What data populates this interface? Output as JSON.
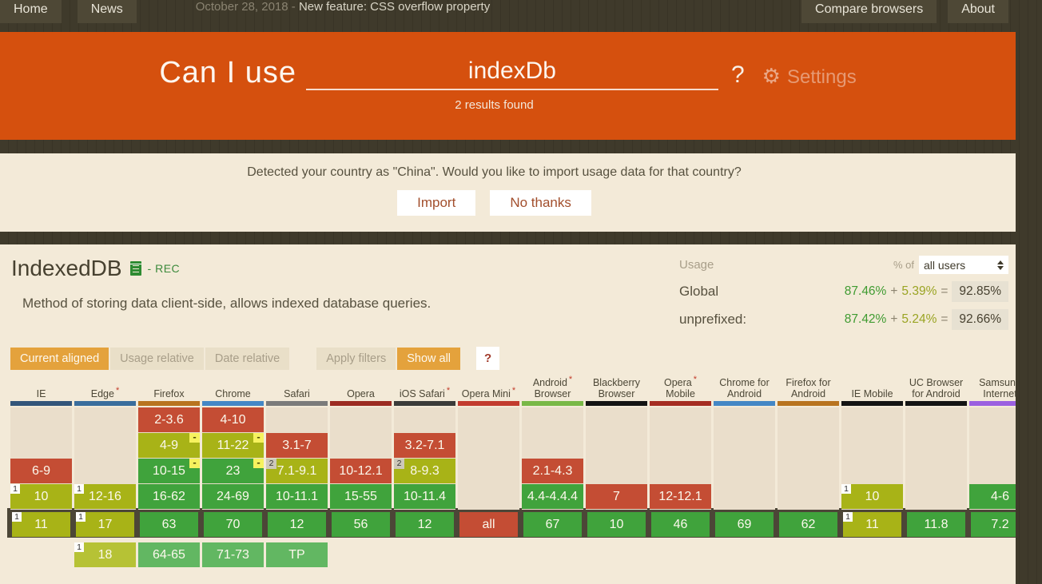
{
  "topnav": {
    "tabs_left": [
      {
        "key": "home",
        "label": "Home"
      },
      {
        "key": "news",
        "label": "News"
      }
    ],
    "news_date": "October 28, 2018 - ",
    "news_text": "New feature: CSS overflow property",
    "tabs_right": [
      {
        "key": "compare-browsers",
        "label": "Compare browsers"
      },
      {
        "key": "about",
        "label": "About"
      }
    ]
  },
  "header": {
    "title": "Can I use",
    "search_value": "indexDb",
    "question_mark": "?",
    "gear_icon": "⚙",
    "settings_label": "Settings",
    "results_text": "2 results found"
  },
  "banner": {
    "message": "Detected your country as \"China\". Would you like to import usage data for that country?",
    "import_label": "Import",
    "no_thanks_label": "No thanks"
  },
  "feature": {
    "title": "IndexedDB",
    "status": "- REC",
    "description": "Method of storing data client-side, allows indexed database queries."
  },
  "usage": {
    "label": "Usage",
    "percent_of_label": "% of",
    "select_value": "all users",
    "rows": [
      {
        "label": "Global",
        "supported": "87.46%",
        "plus": "+",
        "partial": "5.39%",
        "equals": "=",
        "total": "92.85%"
      },
      {
        "label": "unprefixed:",
        "supported": "87.42%",
        "plus": "+",
        "partial": "5.24%",
        "equals": "=",
        "total": "92.66%"
      }
    ]
  },
  "filters": {
    "group1": [
      {
        "key": "current-aligned",
        "label": "Current aligned",
        "active": true
      },
      {
        "key": "usage-relative",
        "label": "Usage relative",
        "active": false
      },
      {
        "key": "date-relative",
        "label": "Date relative",
        "active": false
      }
    ],
    "group2": [
      {
        "key": "apply-filters",
        "label": "Apply filters",
        "active": false
      },
      {
        "key": "show-all",
        "label": "Show all",
        "active": true
      }
    ],
    "help_label": "?"
  },
  "colors": {
    "accent_orange": "#d5500e",
    "button_orange": "#e4a23c",
    "band": "#4c4637",
    "cell_types": {
      "red": "#c44d34",
      "olive": "#a8b317",
      "green": "#40a33c",
      "olive_future": "#b6c235",
      "green_future": "#62b762"
    }
  },
  "table": {
    "columns": [
      {
        "key": "ie",
        "line1": "IE",
        "ast": false,
        "brand": "#33557a",
        "cells": [
          {
            "era": 3,
            "label": "6-9",
            "type": "red"
          },
          {
            "era": 4,
            "label": "10",
            "type": "olive",
            "badge": "1"
          },
          {
            "era": 5,
            "label": "11",
            "type": "olive",
            "badge": "1"
          }
        ]
      },
      {
        "key": "edge",
        "line1": "Edge",
        "ast": true,
        "brand": "#3a6d9c",
        "cells": [
          {
            "era": 4,
            "label": "12-16",
            "type": "olive",
            "badge": "1"
          },
          {
            "era": 5,
            "label": "17",
            "type": "olive",
            "badge": "1"
          },
          {
            "era": 6,
            "label": "18",
            "type": "olive_future",
            "badge": "1"
          }
        ]
      },
      {
        "key": "firefox",
        "line1": "Firefox",
        "ast": false,
        "brand": "#b8731f",
        "cells": [
          {
            "era": 1,
            "label": "2-3.6",
            "type": "red"
          },
          {
            "era": 2,
            "label": "4-9",
            "type": "olive",
            "badge": "minus"
          },
          {
            "era": 3,
            "label": "10-15",
            "type": "green",
            "badge": "minus"
          },
          {
            "era": 4,
            "label": "16-62",
            "type": "green"
          },
          {
            "era": 5,
            "label": "63",
            "type": "green"
          },
          {
            "era": 6,
            "label": "64-65",
            "type": "green_future"
          }
        ]
      },
      {
        "key": "chrome",
        "line1": "Chrome",
        "ast": false,
        "brand": "#4487c5",
        "cells": [
          {
            "era": 1,
            "label": "4-10",
            "type": "red"
          },
          {
            "era": 2,
            "label": "11-22",
            "type": "olive",
            "badge": "minus"
          },
          {
            "era": 3,
            "label": "23",
            "type": "green",
            "badge": "minus"
          },
          {
            "era": 4,
            "label": "24-69",
            "type": "green"
          },
          {
            "era": 5,
            "label": "70",
            "type": "green"
          },
          {
            "era": 6,
            "label": "71-73",
            "type": "green_future"
          }
        ]
      },
      {
        "key": "safari",
        "line1": "Safari",
        "ast": false,
        "brand": "#7b7b7b",
        "cells": [
          {
            "era": 2,
            "label": "3.1-7",
            "type": "red"
          },
          {
            "era": 3,
            "label": "7.1-9.1",
            "type": "olive",
            "badge": "2"
          },
          {
            "era": 4,
            "label": "10-11.1",
            "type": "green"
          },
          {
            "era": 5,
            "label": "12",
            "type": "green"
          },
          {
            "era": 6,
            "label": "TP",
            "type": "green_future"
          }
        ]
      },
      {
        "key": "opera",
        "line1": "Opera",
        "ast": false,
        "brand": "#9c2b22",
        "cells": [
          {
            "era": 3,
            "label": "10-12.1",
            "type": "red"
          },
          {
            "era": 4,
            "label": "15-55",
            "type": "green"
          },
          {
            "era": 5,
            "label": "56",
            "type": "green"
          }
        ]
      },
      {
        "key": "ios-safari",
        "line1": "iOS Safari",
        "ast": true,
        "brand": "#3b3b39",
        "cells": [
          {
            "era": 2,
            "label": "3.2-7.1",
            "type": "red"
          },
          {
            "era": 3,
            "label": "8-9.3",
            "type": "olive",
            "badge": "2"
          },
          {
            "era": 4,
            "label": "10-11.4",
            "type": "green"
          },
          {
            "era": 5,
            "label": "12",
            "type": "green"
          }
        ]
      },
      {
        "key": "opera-mini",
        "line1": "Opera Mini",
        "ast": true,
        "brand": "#c23b2e",
        "cells": [
          {
            "era": 5,
            "label": "all",
            "type": "red"
          }
        ]
      },
      {
        "key": "android-browser",
        "line1": "Android",
        "line2": "Browser",
        "ast": true,
        "brand": "#79b847",
        "cells": [
          {
            "era": 3,
            "label": "2.1-4.3",
            "type": "red"
          },
          {
            "era": 4,
            "label": "4.4-4.4.4",
            "type": "green"
          },
          {
            "era": 5,
            "label": "67",
            "type": "green"
          }
        ]
      },
      {
        "key": "blackberry-browser",
        "line1": "Blackberry",
        "line2": "Browser",
        "ast": false,
        "brand": "#141414",
        "cells": [
          {
            "era": 4,
            "label": "7",
            "type": "red"
          },
          {
            "era": 5,
            "label": "10",
            "type": "green"
          }
        ]
      },
      {
        "key": "opera-mobile",
        "line1": "Opera",
        "line2": "Mobile",
        "ast": true,
        "brand": "#a52c22",
        "cells": [
          {
            "era": 4,
            "label": "12-12.1",
            "type": "red"
          },
          {
            "era": 5,
            "label": "46",
            "type": "green"
          }
        ]
      },
      {
        "key": "chrome-for-android",
        "line1": "Chrome for",
        "line2": "Android",
        "ast": false,
        "brand": "#4487c5",
        "cells": [
          {
            "era": 5,
            "label": "69",
            "type": "green"
          }
        ]
      },
      {
        "key": "firefox-for-android",
        "line1": "Firefox for",
        "line2": "Android",
        "ast": false,
        "brand": "#b8731f",
        "cells": [
          {
            "era": 5,
            "label": "62",
            "type": "green"
          }
        ]
      },
      {
        "key": "ie-mobile",
        "line1": "IE Mobile",
        "ast": false,
        "brand": "#141414",
        "cells": [
          {
            "era": 4,
            "label": "10",
            "type": "olive",
            "badge": "1"
          },
          {
            "era": 5,
            "label": "11",
            "type": "olive",
            "badge": "1"
          }
        ]
      },
      {
        "key": "uc-browser-for-android",
        "line1": "UC Browser",
        "line2": "for Android",
        "ast": false,
        "brand": "#141414",
        "cells": [
          {
            "era": 5,
            "label": "11.8",
            "type": "green"
          }
        ]
      },
      {
        "key": "samsung-internet",
        "line1": "Samsung",
        "line2": "Internet",
        "ast": false,
        "brand": "#9b5fe0",
        "cells": [
          {
            "era": 4,
            "label": "4-6",
            "type": "green"
          },
          {
            "era": 5,
            "label": "7.2",
            "type": "green"
          }
        ]
      }
    ]
  }
}
